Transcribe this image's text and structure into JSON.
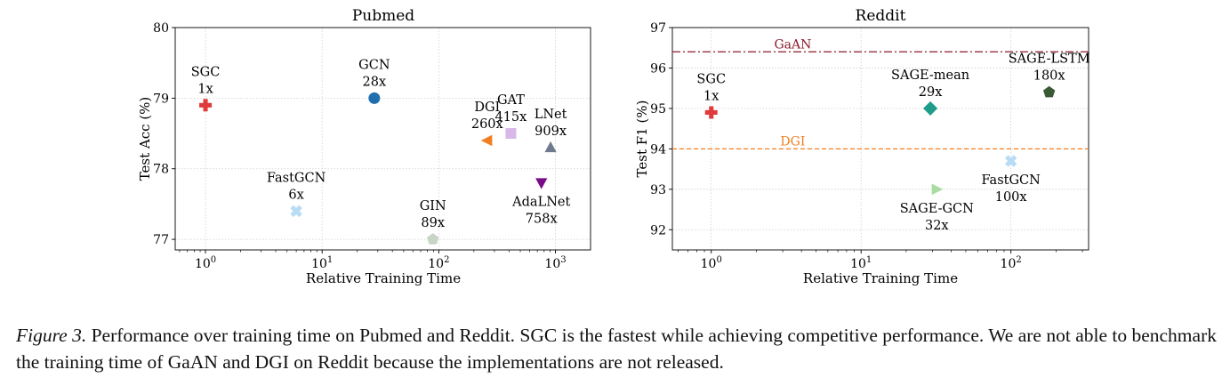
{
  "figure": {
    "caption_label": "Figure 3.",
    "caption_text": " Performance over training time on Pubmed and Reddit. SGC is the fastest while achieving competitive performance. We are not able to benchmark the training time of GaAN and DGI on Reddit because the implementations are not released."
  },
  "colors": {
    "red": "#e03a3a",
    "blue": "#1f6faf",
    "orange": "#f07f20",
    "lavender": "#d8b8e8",
    "slate": "#6f7b8c",
    "purple": "#7a0a8a",
    "lightblue": "#b8dcf4",
    "sage": "#c8d4c6",
    "teal": "#1f9c8a",
    "darkgreen": "#3a5a36",
    "lightgreen": "#a8dca0",
    "darkred": "#8b1a2a"
  },
  "chart_data": [
    {
      "type": "scatter",
      "title": "Pubmed",
      "xlabel": "Relative Training Time",
      "ylabel": "Test Acc (%)",
      "xscale": "log",
      "xlim": [
        0.55,
        2000
      ],
      "ylim": [
        76.85,
        80
      ],
      "xticks": [
        {
          "value": 1,
          "base": "10",
          "exp": "0"
        },
        {
          "value": 10,
          "base": "10",
          "exp": "1"
        },
        {
          "value": 100,
          "base": "10",
          "exp": "2"
        },
        {
          "value": 1000,
          "base": "10",
          "exp": "3"
        }
      ],
      "yticks": [
        {
          "value": 77,
          "label": "77"
        },
        {
          "value": 78,
          "label": "78"
        },
        {
          "value": 79,
          "label": "79"
        },
        {
          "value": 80,
          "label": "80"
        }
      ],
      "grid": true,
      "points": [
        {
          "name": "SGC",
          "speedup": "1x",
          "x": 1,
          "y": 78.9,
          "marker": "plus",
          "color": "#e03a3a",
          "label_pos": "above"
        },
        {
          "name": "GCN",
          "speedup": "28x",
          "x": 28,
          "y": 79.0,
          "marker": "circle",
          "color": "#1f6faf",
          "label_pos": "above"
        },
        {
          "name": "DGI",
          "speedup": "260x",
          "x": 260,
          "y": 78.4,
          "marker": "triangle-left",
          "color": "#f07f20",
          "label_pos": "above"
        },
        {
          "name": "GAT",
          "speedup": "415x",
          "x": 415,
          "y": 78.5,
          "marker": "square",
          "color": "#d8b8e8",
          "label_pos": "above"
        },
        {
          "name": "LNet",
          "speedup": "909x",
          "x": 909,
          "y": 78.3,
          "marker": "triangle-up",
          "color": "#6f7b8c",
          "label_pos": "above"
        },
        {
          "name": "AdaLNet",
          "speedup": "758x",
          "x": 758,
          "y": 77.8,
          "marker": "triangle-down",
          "color": "#7a0a8a",
          "label_pos": "below"
        },
        {
          "name": "FastGCN",
          "speedup": "6x",
          "x": 6,
          "y": 77.4,
          "marker": "x",
          "color": "#b8dcf4",
          "label_pos": "above"
        },
        {
          "name": "GIN",
          "speedup": "89x",
          "x": 89,
          "y": 77.0,
          "marker": "pentagon",
          "color": "#c8d4c6",
          "label_pos": "above"
        }
      ]
    },
    {
      "type": "scatter",
      "title": "Reddit",
      "xlabel": "Relative Training Time",
      "ylabel": "Test F1 (%)",
      "xscale": "log",
      "xlim": [
        0.55,
        330
      ],
      "ylim": [
        91.5,
        97
      ],
      "xticks": [
        {
          "value": 1,
          "base": "10",
          "exp": "0"
        },
        {
          "value": 10,
          "base": "10",
          "exp": "1"
        },
        {
          "value": 100,
          "base": "10",
          "exp": "2"
        }
      ],
      "yticks": [
        {
          "value": 92,
          "label": "92"
        },
        {
          "value": 93,
          "label": "93"
        },
        {
          "value": 94,
          "label": "94"
        },
        {
          "value": 95,
          "label": "95"
        },
        {
          "value": 96,
          "label": "96"
        },
        {
          "value": 97,
          "label": "97"
        }
      ],
      "grid": true,
      "hlines": [
        {
          "name": "GaAN",
          "y": 96.4,
          "style": "dashdot",
          "color": "#8b1a2a"
        },
        {
          "name": "DGI",
          "y": 94.0,
          "style": "dashed",
          "color": "#f07f20"
        }
      ],
      "points": [
        {
          "name": "SGC",
          "speedup": "1x",
          "x": 1,
          "y": 94.9,
          "marker": "plus",
          "color": "#e03a3a",
          "label_pos": "above"
        },
        {
          "name": "SAGE-mean",
          "speedup": "29x",
          "x": 29,
          "y": 95.0,
          "marker": "diamond",
          "color": "#1f9c8a",
          "label_pos": "above"
        },
        {
          "name": "SAGE-LSTM",
          "speedup": "180x",
          "x": 180,
          "y": 95.4,
          "marker": "pentagon",
          "color": "#3a5a36",
          "label_pos": "above"
        },
        {
          "name": "FastGCN",
          "speedup": "100x",
          "x": 100,
          "y": 93.7,
          "marker": "x",
          "color": "#b8dcf4",
          "label_pos": "below"
        },
        {
          "name": "SAGE-GCN",
          "speedup": "32x",
          "x": 32,
          "y": 93.0,
          "marker": "triangle-right",
          "color": "#a8dca0",
          "label_pos": "below"
        }
      ]
    }
  ]
}
